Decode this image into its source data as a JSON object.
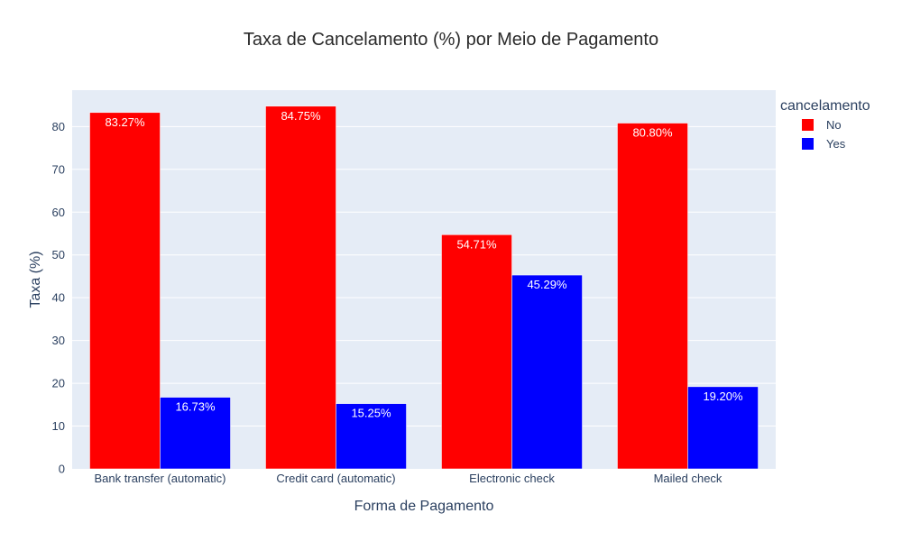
{
  "chart_data": {
    "type": "bar",
    "barmode": "group",
    "title": "Taxa de Cancelamento (%) por Meio de Pagamento",
    "xlabel": "Forma de Pagamento",
    "ylabel": "Taxa (%)",
    "categories": [
      "Bank transfer (automatic)",
      "Credit card (automatic)",
      "Electronic check",
      "Mailed check"
    ],
    "series": [
      {
        "name": "No",
        "color": "#ff0000",
        "values": [
          83.27,
          84.75,
          54.71,
          80.8
        ],
        "labels": [
          "83.27%",
          "84.75%",
          "54.71%",
          "80.80%"
        ]
      },
      {
        "name": "Yes",
        "color": "#0000ff",
        "values": [
          16.73,
          15.25,
          45.29,
          19.2
        ],
        "labels": [
          "16.73%",
          "15.25%",
          "45.29%",
          "19.20%"
        ]
      }
    ],
    "ylim": [
      0,
      88.5
    ],
    "yticks": [
      0,
      10,
      20,
      30,
      40,
      50,
      60,
      70,
      80
    ],
    "grid": true,
    "legend": {
      "title": "cancelamento",
      "position": "top-right"
    },
    "plot_background": "#e5ecf6"
  }
}
